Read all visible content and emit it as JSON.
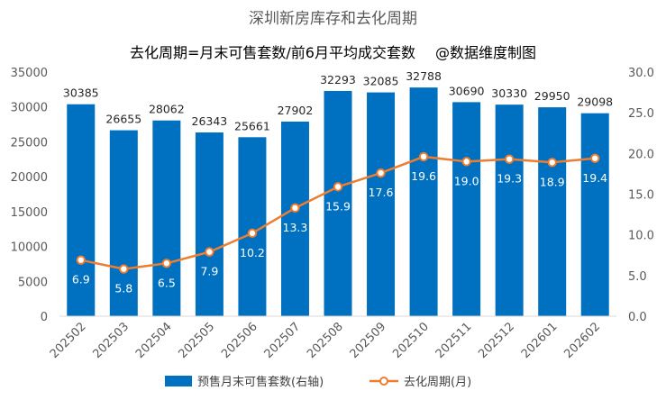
{
  "chart_data": {
    "type": "bar+line",
    "title": "深圳新房库存和去化周期",
    "subtitle": "去化周期=月末可售套数/前6月平均成交套数",
    "watermark": "@数据维度制图",
    "categories": [
      "202502",
      "202503",
      "202504",
      "202505",
      "202506",
      "202507",
      "202508",
      "202509",
      "202510",
      "202511",
      "202512",
      "202601",
      "202602"
    ],
    "series": [
      {
        "name": "预售月末可售套数(右轴)",
        "type": "bar",
        "axis": "left",
        "color": "#0070C0",
        "values": [
          30385,
          26655,
          28062,
          26343,
          25661,
          27902,
          32293,
          32085,
          32788,
          30690,
          30330,
          29950,
          29098
        ]
      },
      {
        "name": "去化周期(月)",
        "type": "line",
        "axis": "right",
        "color": "#ED7D31",
        "values": [
          6.9,
          5.8,
          6.5,
          7.9,
          10.2,
          13.3,
          15.9,
          17.6,
          19.6,
          19.0,
          19.3,
          18.9,
          19.4
        ]
      }
    ],
    "y_left": {
      "min": 0,
      "max": 35000,
      "step": 5000,
      "ticks": [
        "0",
        "5000",
        "10000",
        "15000",
        "20000",
        "25000",
        "30000",
        "35000"
      ]
    },
    "y_right": {
      "min": 0,
      "max": 30,
      "step": 5,
      "ticks": [
        "0.0",
        "5.0",
        "10.0",
        "15.0",
        "20.0",
        "25.0",
        "30.0"
      ]
    },
    "grid": false,
    "legend_position": "bottom"
  }
}
